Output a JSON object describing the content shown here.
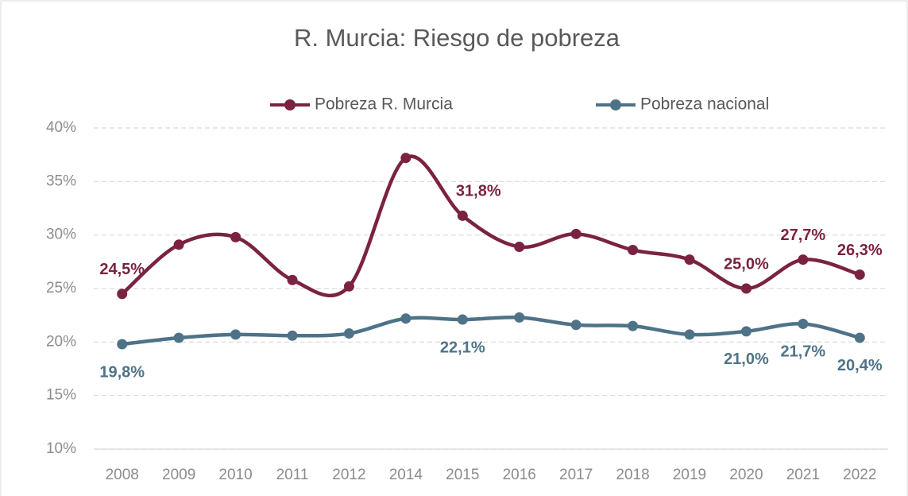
{
  "chart_data": {
    "type": "line",
    "title": "R. Murcia: Riesgo de pobreza",
    "categories": [
      "2008",
      "2009",
      "2010",
      "2011",
      "2012",
      "2014",
      "2015",
      "2016",
      "2017",
      "2018",
      "2019",
      "2020",
      "2021",
      "2022"
    ],
    "series": [
      {
        "name": "Pobreza R. Murcia",
        "color": "#7b2242",
        "values": [
          24.5,
          29.1,
          29.8,
          25.8,
          25.2,
          37.2,
          31.8,
          28.9,
          30.1,
          28.6,
          27.7,
          25.0,
          27.7,
          26.3
        ],
        "value_labels": [
          "24,5%",
          null,
          null,
          null,
          null,
          null,
          "31,8%",
          null,
          null,
          null,
          null,
          "25,0%",
          "27,7%",
          "26,3%"
        ]
      },
      {
        "name": "Pobreza nacional",
        "color": "#4e7388",
        "values": [
          19.8,
          20.4,
          20.7,
          20.6,
          20.8,
          22.2,
          22.1,
          22.3,
          21.6,
          21.5,
          20.7,
          21.0,
          21.7,
          20.4
        ],
        "value_labels": [
          "19,8%",
          null,
          null,
          null,
          null,
          null,
          "22,1%",
          null,
          null,
          null,
          null,
          "21,0%",
          "21,7%",
          "20,4%"
        ]
      }
    ],
    "ylim": [
      10,
      40
    ],
    "yticks": [
      {
        "value": 10,
        "label": "10%"
      },
      {
        "value": 15,
        "label": "15%"
      },
      {
        "value": 20,
        "label": "20%"
      },
      {
        "value": 25,
        "label": "25%"
      },
      {
        "value": 30,
        "label": "30%"
      },
      {
        "value": 35,
        "label": "35%"
      },
      {
        "value": 40,
        "label": "40%"
      }
    ],
    "grid": true,
    "smooth": true,
    "legend": "top"
  }
}
